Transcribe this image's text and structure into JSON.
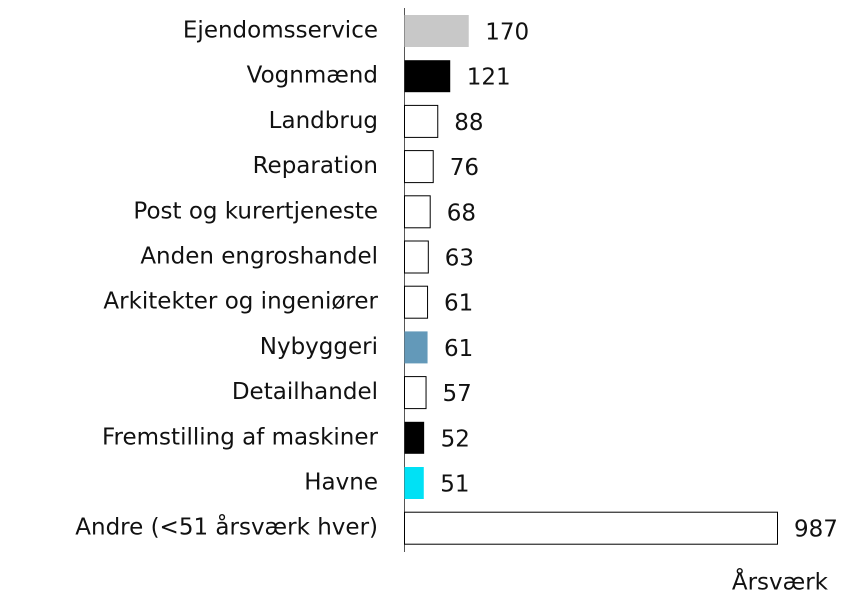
{
  "chart_data": {
    "type": "bar",
    "orientation": "horizontal",
    "categories": [
      "Ejendomsservice",
      "Vognmænd",
      "Landbrug",
      "Reparation",
      "Post og kurertjeneste",
      "Anden engroshandel",
      "Arkitekter og ingeniører",
      "Nybyggeri",
      "Detailhandel",
      "Fremstilling af maskiner",
      "Havne",
      "Andre (<51 årsværk hver)"
    ],
    "values": [
      170,
      121,
      88,
      76,
      68,
      63,
      61,
      61,
      57,
      52,
      51,
      987
    ],
    "colors": [
      "#c8c8c8",
      "#000000",
      "#ffffff",
      "#ffffff",
      "#ffffff",
      "#ffffff",
      "#ffffff",
      "#6399b9",
      "#ffffff",
      "#000000",
      "#00e1f5",
      "#ffffff"
    ],
    "x_label": "Årsværk"
  }
}
